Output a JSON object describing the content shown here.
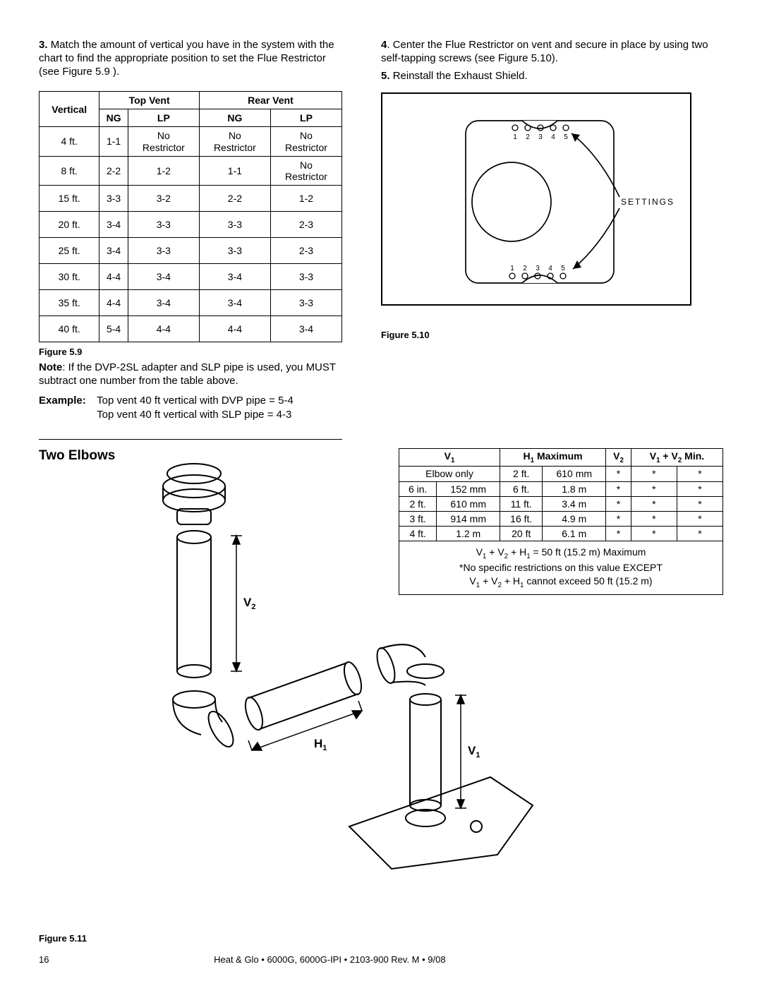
{
  "instr": {
    "left3_num": "3.",
    "left3": "Match the amount of vertical you have in the system with the chart to find the appropriate position to set the Flue Restrictor (see Figure 5.9 ).",
    "right4_num": "4",
    "right4": ". Center the Flue Restrictor on vent  and secure in place by using two self-tapping screws (see Figure 5.10).",
    "right5_num": "5.",
    "right5": "Reinstall the Exhaust Shield."
  },
  "restrictor_table": {
    "headers": {
      "vertical": "Vertical",
      "top": "Top Vent",
      "rear": "Rear Vent",
      "ng": "NG",
      "lp": "LP"
    },
    "rows": [
      {
        "v": "4 ft.",
        "tng": "1-1",
        "tlp": "No Restrictor",
        "rng": "No Restrictor",
        "rlp": "No Restrictor"
      },
      {
        "v": "8 ft.",
        "tng": "2-2",
        "tlp": "1-2",
        "rng": "1-1",
        "rlp": "No Restrictor"
      },
      {
        "v": "15 ft.",
        "tng": "3-3",
        "tlp": "3-2",
        "rng": "2-2",
        "rlp": "1-2"
      },
      {
        "v": "20 ft.",
        "tng": "3-4",
        "tlp": "3-3",
        "rng": "3-3",
        "rlp": "2-3"
      },
      {
        "v": "25 ft.",
        "tng": "3-4",
        "tlp": "3-3",
        "rng": "3-3",
        "rlp": "2-3"
      },
      {
        "v": "30 ft.",
        "tng": "4-4",
        "tlp": "3-4",
        "rng": "3-4",
        "rlp": "3-3"
      },
      {
        "v": "35 ft.",
        "tng": "4-4",
        "tlp": "3-4",
        "rng": "3-4",
        "rlp": "3-3"
      },
      {
        "v": "40 ft.",
        "tng": "5-4",
        "tlp": "4-4",
        "rng": "4-4",
        "rlp": "3-4"
      }
    ],
    "caption": "Figure 5.9"
  },
  "note": {
    "label": "Note",
    "text": ": If the DVP-2SL adapter and SLP pipe is used, you MUST subtract one number from the table above."
  },
  "example": {
    "label": "Example:",
    "line1": "Top vent 40 ft vertical with DVP pipe = 5-4",
    "line2": "Top vent 40 ft vertical with SLP pipe = 4-3"
  },
  "fig510": {
    "caption": "Figure 5.10",
    "settings_label": "SETTINGS",
    "top_numbers": [
      "1",
      "2",
      "3",
      "4",
      "5"
    ],
    "bottom_numbers": [
      "1",
      "2",
      "3",
      "4",
      "5"
    ]
  },
  "two_elbows": {
    "title": "Two Elbows",
    "labels": {
      "V1": "V",
      "V1s": "1",
      "V2": "V",
      "V2s": "2",
      "H1": "H",
      "H1s": "1"
    }
  },
  "elbows_table": {
    "h_v1": "V",
    "h_v1s": "1",
    "h_h1max": "H",
    "h_h1s": "1",
    "h_max": " Maximum",
    "h_v2": "V",
    "h_v2s": "2",
    "h_vmin_a": "V",
    "h_vmin_as": "1",
    "h_vmin_plus": " + V",
    "h_vmin_bs": "2",
    "h_vmin_tail": " Min.",
    "rows": [
      {
        "v1a": "Elbow only",
        "v1b": "",
        "h1a": "2 ft.",
        "h1b": "610 mm",
        "v2": "*",
        "m1": "*",
        "m2": "*"
      },
      {
        "v1a": "6 in.",
        "v1b": "152 mm",
        "h1a": "6 ft.",
        "h1b": "1.8 m",
        "v2": "*",
        "m1": "*",
        "m2": "*"
      },
      {
        "v1a": "2 ft.",
        "v1b": "610 mm",
        "h1a": "11 ft.",
        "h1b": "3.4 m",
        "v2": "*",
        "m1": "*",
        "m2": "*"
      },
      {
        "v1a": "3 ft.",
        "v1b": "914 mm",
        "h1a": "16 ft.",
        "h1b": "4.9 m",
        "v2": "*",
        "m1": "*",
        "m2": "*"
      },
      {
        "v1a": "4 ft.",
        "v1b": "1.2 m",
        "h1a": "20 ft",
        "h1b": "6.1 m",
        "v2": "*",
        "m1": "*",
        "m2": "*"
      }
    ],
    "note1_a": "V",
    "note1_as": "1",
    "note1_b": " + V",
    "note1_bs": "2",
    "note1_c": " + H",
    "note1_cs": "1",
    "note1_d": " = 50 ft (15.2 m) Maximum",
    "note2": "*No specific restrictions on this value EXCEPT",
    "note3_a": "V",
    "note3_as": "1",
    "note3_b": " + V",
    "note3_bs": "2",
    "note3_c": " + H",
    "note3_cs": "1",
    "note3_d": "  cannot exceed 50 ft (15.2 m)"
  },
  "fig511_caption": "Figure 5.11",
  "footer": {
    "page": "16",
    "doc": "Heat & Glo  •  6000G, 6000G-IPI  •  2103-900  Rev. M  •  9/08"
  }
}
